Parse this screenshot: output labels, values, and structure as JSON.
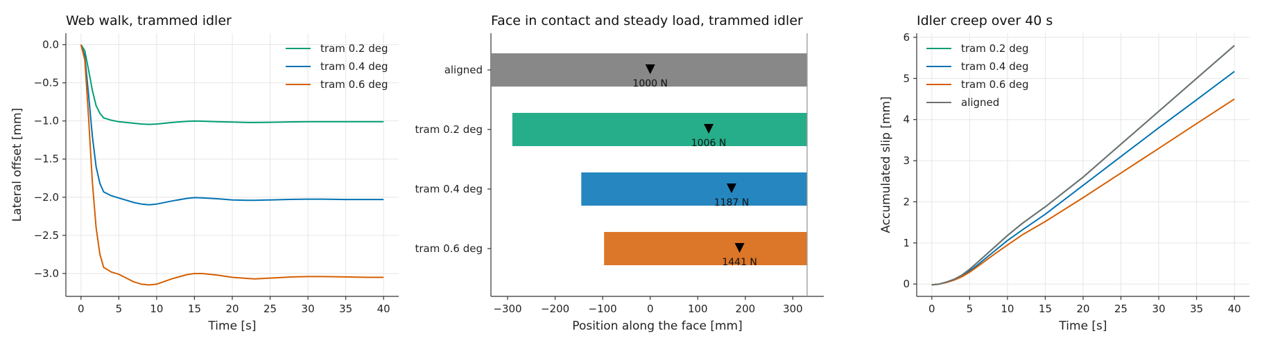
{
  "chart_data": [
    {
      "type": "line",
      "title": "Web walk, trammed idler",
      "xlabel": "Time [s]",
      "ylabel": "Lateral offset [mm]",
      "xlim": [
        -2,
        42
      ],
      "ylim": [
        -3.3,
        0.15
      ],
      "xticks": [
        0,
        5,
        10,
        15,
        20,
        25,
        30,
        35,
        40
      ],
      "yticks": [
        0.0,
        -0.5,
        -1.0,
        -1.5,
        -2.0,
        -2.5,
        -3.0
      ],
      "ytick_labels": [
        "0.0",
        "−0.5",
        "−1.0",
        "−1.5",
        "−2.0",
        "−2.5",
        "−3.0"
      ],
      "grid": true,
      "legend": "top-right",
      "series": [
        {
          "name": "tram 0.2 deg",
          "color": "#009E73",
          "x": [
            0,
            0.5,
            1,
            1.5,
            2,
            2.5,
            3,
            4,
            5,
            6,
            7,
            8,
            9,
            10,
            12,
            14,
            15,
            16,
            18,
            20,
            22,
            23,
            25,
            28,
            30,
            32,
            35,
            38,
            40
          ],
          "y": [
            0,
            -0.08,
            -0.33,
            -0.6,
            -0.8,
            -0.9,
            -0.96,
            -0.99,
            -1.01,
            -1.02,
            -1.03,
            -1.04,
            -1.045,
            -1.04,
            -1.02,
            -1.005,
            -1.0,
            -1.003,
            -1.01,
            -1.015,
            -1.02,
            -1.02,
            -1.018,
            -1.012,
            -1.01,
            -1.01,
            -1.01,
            -1.01,
            -1.01
          ]
        },
        {
          "name": "tram 0.4 deg",
          "color": "#0072B2",
          "x": [
            0,
            0.5,
            1,
            1.5,
            2,
            2.5,
            3,
            4,
            5,
            6,
            7,
            8,
            9,
            10,
            12,
            14,
            15,
            16,
            18,
            20,
            22,
            23,
            25,
            28,
            30,
            32,
            35,
            38,
            40
          ],
          "y": [
            0,
            -0.15,
            -0.65,
            -1.2,
            -1.6,
            -1.82,
            -1.93,
            -1.98,
            -2.01,
            -2.04,
            -2.07,
            -2.09,
            -2.1,
            -2.09,
            -2.05,
            -2.015,
            -2.005,
            -2.008,
            -2.02,
            -2.035,
            -2.04,
            -2.04,
            -2.035,
            -2.028,
            -2.025,
            -2.025,
            -2.03,
            -2.03,
            -2.03
          ]
        },
        {
          "name": "tram 0.6 deg",
          "color": "#D55E00",
          "x": [
            0,
            0.5,
            1,
            1.5,
            2,
            2.5,
            3,
            4,
            5,
            6,
            7,
            8,
            9,
            10,
            12,
            14,
            15,
            16,
            18,
            20,
            22,
            23,
            25,
            28,
            30,
            32,
            35,
            38,
            40
          ],
          "y": [
            0,
            -0.2,
            -0.95,
            -1.8,
            -2.4,
            -2.75,
            -2.92,
            -2.98,
            -3.01,
            -3.06,
            -3.11,
            -3.14,
            -3.15,
            -3.14,
            -3.07,
            -3.015,
            -3.0,
            -3.0,
            -3.02,
            -3.05,
            -3.065,
            -3.07,
            -3.06,
            -3.045,
            -3.04,
            -3.04,
            -3.045,
            -3.05,
            -3.05
          ]
        }
      ]
    },
    {
      "type": "bar",
      "orientation": "horizontal",
      "title": "Face in contact and steady load, trammed idler",
      "xlabel": "Position along the face [mm]",
      "ylabel": "",
      "xlim": [
        -335,
        365
      ],
      "xticks": [
        -300,
        -200,
        -100,
        0,
        100,
        200,
        300
      ],
      "xtick_labels": [
        "−300",
        "−200",
        "−100",
        "0",
        "100",
        "200",
        "300"
      ],
      "face_edge": 330,
      "categories": [
        "aligned",
        "tram 0.2 deg",
        "tram 0.4 deg",
        "tram 0.6 deg"
      ],
      "bar_start": [
        -335,
        -290,
        -145,
        -97
      ],
      "bar_end": [
        330,
        330,
        330,
        330
      ],
      "load_position": [
        0,
        123,
        171,
        188
      ],
      "load_labels": [
        "1000 N",
        "1006 N",
        "1187 N",
        "1441 N"
      ],
      "colors": [
        "#888888",
        "#26AE8A",
        "#2687C0",
        "#DC7628"
      ]
    },
    {
      "type": "line",
      "title": "Idler creep over 40 s",
      "xlabel": "Time [s]",
      "ylabel": "Accumulated slip [mm]",
      "xlim": [
        -2,
        42
      ],
      "ylim": [
        -0.3,
        6.1
      ],
      "xticks": [
        0,
        5,
        10,
        15,
        20,
        25,
        30,
        35,
        40
      ],
      "yticks": [
        0,
        1,
        2,
        3,
        4,
        5,
        6
      ],
      "grid": true,
      "legend": "top-left",
      "series": [
        {
          "name": "tram 0.2 deg",
          "color": "#009E73",
          "x": [
            0,
            1,
            2,
            3,
            4,
            5,
            6,
            8,
            10,
            12,
            15,
            20,
            25,
            30,
            35,
            40
          ],
          "y": [
            -0.02,
            0.0,
            0.05,
            0.12,
            0.22,
            0.36,
            0.52,
            0.85,
            1.18,
            1.48,
            1.88,
            2.6,
            3.4,
            4.2,
            5.0,
            5.8
          ]
        },
        {
          "name": "tram 0.4 deg",
          "color": "#0072B2",
          "x": [
            0,
            1,
            2,
            3,
            4,
            5,
            6,
            8,
            10,
            12,
            15,
            20,
            25,
            30,
            35,
            40
          ],
          "y": [
            -0.02,
            0.0,
            0.05,
            0.11,
            0.2,
            0.32,
            0.46,
            0.76,
            1.06,
            1.32,
            1.7,
            2.4,
            3.1,
            3.8,
            4.48,
            5.17
          ]
        },
        {
          "name": "tram 0.6 deg",
          "color": "#D55E00",
          "x": [
            0,
            1,
            2,
            3,
            4,
            5,
            6,
            8,
            10,
            12,
            15,
            20,
            25,
            30,
            35,
            40
          ],
          "y": [
            -0.02,
            0.0,
            0.04,
            0.1,
            0.18,
            0.29,
            0.42,
            0.69,
            0.95,
            1.2,
            1.52,
            2.1,
            2.7,
            3.3,
            3.9,
            4.5
          ]
        },
        {
          "name": "aligned",
          "color": "#6F6F6F",
          "x": [
            0,
            1,
            2,
            3,
            4,
            5,
            6,
            8,
            10,
            12,
            15,
            20,
            25,
            30,
            35,
            40
          ],
          "y": [
            -0.02,
            0.0,
            0.05,
            0.12,
            0.22,
            0.36,
            0.52,
            0.85,
            1.18,
            1.48,
            1.88,
            2.6,
            3.4,
            4.2,
            5.0,
            5.8
          ]
        }
      ]
    }
  ]
}
